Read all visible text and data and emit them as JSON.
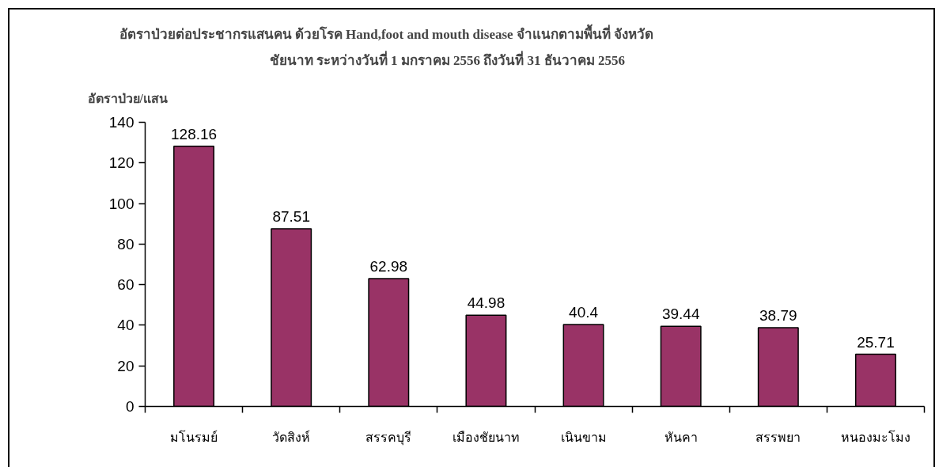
{
  "chart_data": {
    "type": "bar",
    "title": "อัตราป่วยต่อประชากรแสนคน ด้วยโรค Hand,foot and mouth disease จำแนกตามพื้นที่ จังหวัด",
    "subtitle": "ชัยนาท ระหว่างวันที่ 1 มกราคม 2556 ถึงวันที่ 31 ธันวาคม 2556",
    "ylabel": "อัตราป่วย/แสน",
    "categories": [
      "มโนรมย์",
      "วัดสิงห์",
      "สรรคบุรี",
      "เมืองชัยนาท",
      "เนินขาม",
      "หันคา",
      "สรรพยา",
      "หนองมะโมง"
    ],
    "values": [
      128.16,
      87.51,
      62.98,
      44.98,
      40.4,
      39.44,
      38.79,
      25.71
    ],
    "color": "#993366",
    "ylim": [
      0,
      140
    ],
    "yticks": [
      0,
      20,
      40,
      60,
      80,
      100,
      120,
      140
    ],
    "data_labels": true
  }
}
